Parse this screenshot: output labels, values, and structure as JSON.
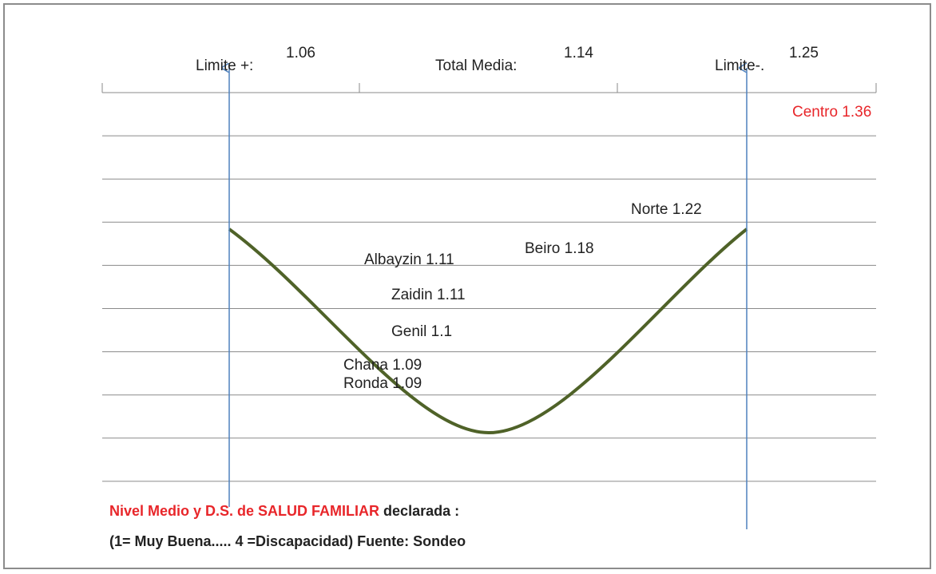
{
  "header": {
    "limit_plus_label": "Limite +:",
    "limit_plus_value": "1.06",
    "total_label": "Total Media:",
    "total_value": "1.14",
    "limit_minus_label": "Limite-.",
    "limit_minus_value": "1.25"
  },
  "centro": "Centro 1.36",
  "regions": [
    "Norte 1.22",
    "Beiro 1.18",
    "Albayzin  1.11",
    "Zaidin  1.11",
    "Genil 1.1",
    "Chana 1.09",
    "Ronda 1.09"
  ],
  "caption": {
    "line1_red": "Nivel Medio  y  D.S. de SALUD FAMILIAR",
    "line1_black": " declarada :",
    "line2": "(1= Muy Buena..... 4 =Discapacidad)  Fuente: Sondeo"
  }
}
